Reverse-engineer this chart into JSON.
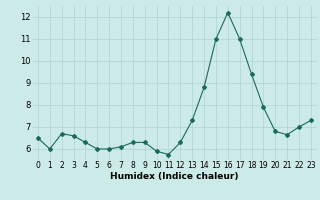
{
  "x": [
    0,
    1,
    2,
    3,
    4,
    5,
    6,
    7,
    8,
    9,
    10,
    11,
    12,
    13,
    14,
    15,
    16,
    17,
    18,
    19,
    20,
    21,
    22,
    23
  ],
  "y": [
    6.5,
    6.0,
    6.7,
    6.6,
    6.3,
    6.0,
    6.0,
    6.1,
    6.3,
    6.3,
    5.9,
    5.75,
    6.3,
    7.3,
    8.8,
    11.0,
    12.2,
    11.0,
    9.4,
    7.9,
    6.8,
    6.65,
    7.0,
    7.3
  ],
  "line_color": "#1a6b5a",
  "marker": "D",
  "marker_size": 2,
  "bg_color": "#cceae7",
  "grid_color": "#b0d4d0",
  "xlabel": "Humidex (Indice chaleur)",
  "xlim": [
    -0.5,
    23.5
  ],
  "ylim": [
    5.5,
    12.5
  ],
  "yticks": [
    6,
    7,
    8,
    9,
    10,
    11,
    12
  ],
  "xticks": [
    0,
    1,
    2,
    3,
    4,
    5,
    6,
    7,
    8,
    9,
    10,
    11,
    12,
    13,
    14,
    15,
    16,
    17,
    18,
    19,
    20,
    21,
    22,
    23
  ],
  "tick_fontsize": 5.5,
  "xlabel_fontsize": 6.5
}
